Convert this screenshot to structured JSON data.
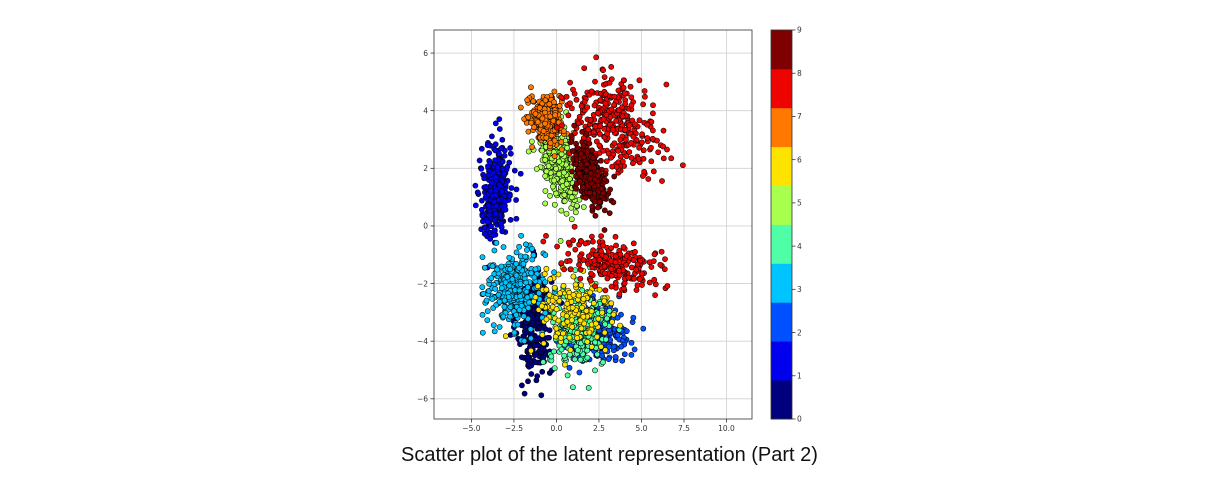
{
  "caption": "Scatter plot of the latent representation (Part 2)",
  "chart_data": {
    "type": "scatter",
    "title": "",
    "xlabel": "",
    "ylabel": "",
    "xlim": [
      -7.2,
      11.5
    ],
    "ylim": [
      -6.7,
      6.8
    ],
    "x_ticks": [
      -5.0,
      -2.5,
      0.0,
      2.5,
      5.0,
      7.5,
      10.0
    ],
    "x_tick_labels": [
      "−5.0",
      "−2.5",
      "0.0",
      "2.5",
      "5.0",
      "7.5",
      "10.0"
    ],
    "y_ticks": [
      -6,
      -4,
      -2,
      0,
      2,
      4,
      6
    ],
    "y_tick_labels": [
      "−6",
      "−4",
      "−2",
      "0",
      "2",
      "4",
      "6"
    ],
    "grid": true,
    "colormap": "jet",
    "colorbar": {
      "min": 0,
      "max": 9,
      "ticks": [
        0,
        1,
        2,
        3,
        4,
        5,
        6,
        7,
        8,
        9
      ],
      "tick_labels": [
        "0",
        "1",
        "2",
        "3",
        "4",
        "5",
        "6",
        "7",
        "8",
        "9"
      ],
      "colors": [
        "#00007f",
        "#0000ed",
        "#0050ff",
        "#00c4ff",
        "#4effa8",
        "#a8ff4e",
        "#ffe300",
        "#ff7800",
        "#ed0400",
        "#7f0000"
      ]
    },
    "marker_edge_color": "#000000",
    "clusters": [
      {
        "label": 0,
        "color": "#00007f",
        "n": 260,
        "center": [
          -1.3,
          -3.4
        ],
        "spread": [
          0.9,
          1.7
        ],
        "angle": 0
      },
      {
        "label": 1,
        "color": "#0000ed",
        "n": 320,
        "center": [
          -3.5,
          1.2
        ],
        "spread": [
          0.8,
          1.5
        ],
        "angle": -10
      },
      {
        "label": 2,
        "color": "#0050ff",
        "n": 260,
        "center": [
          2.3,
          -3.7
        ],
        "spread": [
          1.8,
          0.9
        ],
        "angle": 0
      },
      {
        "label": 3,
        "color": "#00c4ff",
        "n": 320,
        "center": [
          -2.4,
          -2.2
        ],
        "spread": [
          1.6,
          1.2
        ],
        "angle": 0
      },
      {
        "label": 4,
        "color": "#4effa8",
        "n": 240,
        "center": [
          1.4,
          -3.6
        ],
        "spread": [
          1.6,
          1.2
        ],
        "angle": 0
      },
      {
        "label": 5,
        "color": "#a8ff4e",
        "n": 320,
        "center": [
          0.1,
          2.2
        ],
        "spread": [
          0.8,
          1.5
        ],
        "angle": 35
      },
      {
        "label": 6,
        "color": "#ffe300",
        "n": 160,
        "center": [
          0.9,
          -3.0
        ],
        "spread": [
          2.2,
          1.5
        ],
        "angle": 0
      },
      {
        "label": 7,
        "color": "#ff7800",
        "n": 320,
        "center": [
          -0.6,
          3.7
        ],
        "spread": [
          0.9,
          0.7
        ],
        "angle": -30
      },
      {
        "label": 8,
        "color": "#ed0400",
        "n": 320,
        "center": [
          3.5,
          3.5
        ],
        "spread": [
          2.4,
          1.4
        ],
        "angle": -15
      },
      {
        "label": 8,
        "color": "#ed0400",
        "n": 220,
        "center": [
          3.3,
          -1.3
        ],
        "spread": [
          2.3,
          0.8
        ],
        "angle": -10
      },
      {
        "label": 9,
        "color": "#7f0000",
        "n": 300,
        "center": [
          2.0,
          1.7
        ],
        "spread": [
          0.6,
          1.2
        ],
        "angle": 40
      }
    ]
  }
}
